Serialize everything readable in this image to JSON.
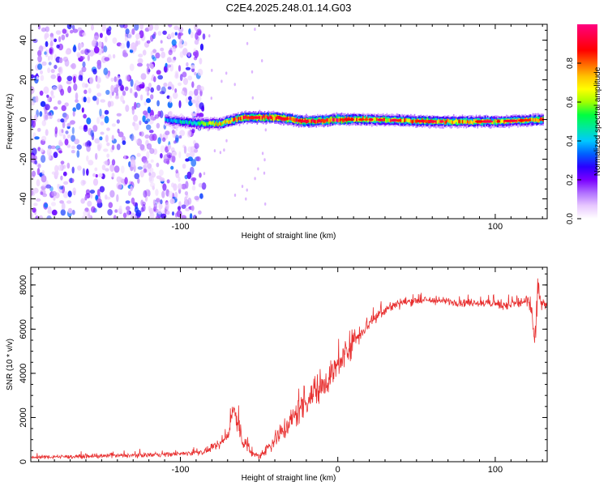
{
  "chart_data": [
    {
      "id": "spectrogram",
      "type": "heatmap",
      "title": "C2E4.2025.248.01.14.G03",
      "xlabel": "Height of straight line (km)",
      "ylabel": "Frequency (Hz)",
      "xlim": [
        -195,
        133
      ],
      "ylim": [
        -50,
        48
      ],
      "xticks": [
        -100,
        100
      ],
      "yticks": [
        -40,
        -20,
        0,
        20,
        40
      ],
      "colorbar": {
        "label": "Normalized spectral amplitude",
        "range": [
          0,
          1
        ],
        "ticks": [
          0.0,
          0.2,
          0.4,
          0.6,
          0.8
        ],
        "tick_labels": [
          "0.0",
          "0.2",
          "0.4",
          "0.6",
          "0.8"
        ],
        "colors": [
          "#ffffff",
          "#e8c8ff",
          "#b070ff",
          "#7a00ff",
          "#2a00ff",
          "#0060ff",
          "#00c8ff",
          "#00e8a0",
          "#00ff40",
          "#a0ff00",
          "#ffff00",
          "#ffc000",
          "#ff6000",
          "#ff0000",
          "#ff0040",
          "#ff0080"
        ]
      },
      "noise_region": [
        -195,
        -85
      ],
      "signal_ridge": [
        {
          "x": -110,
          "freq": 0,
          "amp": 0.35
        },
        {
          "x": -90,
          "freq": -2,
          "amp": 0.5
        },
        {
          "x": -75,
          "freq": -2,
          "amp": 0.7
        },
        {
          "x": -60,
          "freq": 1,
          "amp": 0.85
        },
        {
          "x": -40,
          "freq": 1,
          "amp": 0.9
        },
        {
          "x": -20,
          "freq": -1,
          "amp": 0.85
        },
        {
          "x": 0,
          "freq": 0,
          "amp": 0.9
        },
        {
          "x": 20,
          "freq": 0,
          "amp": 0.7
        },
        {
          "x": 60,
          "freq": -1,
          "amp": 0.75
        },
        {
          "x": 100,
          "freq": -1,
          "amp": 0.7
        },
        {
          "x": 130,
          "freq": 0,
          "amp": 0.75
        }
      ]
    },
    {
      "id": "snr",
      "type": "line",
      "xlabel": "Height of straight line (km)",
      "ylabel": "SNR (10 * v/v)",
      "xlim": [
        -195,
        133
      ],
      "ylim": [
        0,
        8800
      ],
      "xticks": [
        -100,
        0,
        100
      ],
      "yticks": [
        0,
        2000,
        4000,
        6000,
        8000
      ],
      "series": [
        {
          "name": "SNR",
          "color": "#e83030",
          "x": [
            -195,
            -150,
            -100,
            -85,
            -75,
            -70,
            -66,
            -63,
            -60,
            -55,
            -50,
            -45,
            -35,
            -30,
            -20,
            -10,
            0,
            10,
            20,
            30,
            40,
            50,
            60,
            70,
            80,
            90,
            100,
            110,
            115,
            120,
            123,
            125,
            127,
            130,
            133
          ],
          "y": [
            200,
            250,
            350,
            450,
            750,
            1200,
            2400,
            1500,
            900,
            400,
            250,
            600,
            1400,
            1800,
            2800,
            3500,
            4300,
            5500,
            6300,
            6900,
            7200,
            7300,
            7300,
            7250,
            7200,
            7200,
            7150,
            7100,
            7200,
            7300,
            6800,
            5400,
            7600,
            7100,
            7100
          ],
          "noise": [
            80,
            90,
            100,
            120,
            150,
            200,
            500,
            450,
            300,
            180,
            150,
            300,
            500,
            600,
            700,
            700,
            650,
            500,
            350,
            250,
            200,
            180,
            170,
            170,
            170,
            170,
            200,
            250,
            250,
            300,
            400,
            600,
            800,
            250,
            200
          ]
        }
      ]
    }
  ]
}
